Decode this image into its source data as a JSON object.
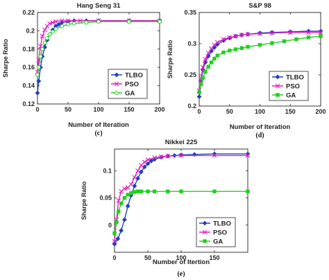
{
  "chart_data": [
    {
      "type": "line",
      "title": "Hang Seng 31",
      "panel_label": "(c)",
      "xlabel": "Number of Iteration",
      "ylabel": "Sharpe Ratio",
      "xlim": [
        0,
        200
      ],
      "ylim": [
        0.12,
        0.22
      ],
      "xticks": [
        0,
        50,
        100,
        150,
        200
      ],
      "yticks": [
        0.12,
        0.14,
        0.16,
        0.18,
        0.2,
        0.22
      ],
      "ytick_labels": [
        "0.12",
        "0.14",
        "0.16",
        "0.18",
        "0.2",
        "0.22"
      ],
      "grid": false,
      "legend": "bottom-right",
      "series": [
        {
          "name": "TLBO",
          "color": "#1f3fbf",
          "marker": "diamond",
          "x": [
            0,
            2,
            5,
            8,
            12,
            16,
            20,
            25,
            30,
            35,
            40,
            50,
            60,
            80,
            100,
            150,
            200
          ],
          "y": [
            0.132,
            0.145,
            0.16,
            0.172,
            0.182,
            0.19,
            0.196,
            0.201,
            0.205,
            0.207,
            0.209,
            0.21,
            0.211,
            0.211,
            0.211,
            0.211,
            0.211
          ]
        },
        {
          "name": "PSO",
          "color": "#e020c0",
          "marker": "x",
          "x": [
            0,
            2,
            5,
            8,
            12,
            16,
            20,
            25,
            30,
            40,
            50,
            70,
            100,
            150,
            200
          ],
          "y": [
            0.155,
            0.168,
            0.183,
            0.194,
            0.201,
            0.205,
            0.208,
            0.209,
            0.21,
            0.211,
            0.211,
            0.211,
            0.211,
            0.211,
            0.211
          ]
        },
        {
          "name": "GA",
          "color": "#20d020",
          "marker": "circle",
          "x": [
            0,
            2,
            5,
            8,
            12,
            16,
            20,
            25,
            30,
            40,
            50,
            60,
            80,
            100,
            150,
            200
          ],
          "y": [
            0.152,
            0.16,
            0.172,
            0.18,
            0.187,
            0.192,
            0.196,
            0.199,
            0.202,
            0.205,
            0.207,
            0.208,
            0.209,
            0.21,
            0.21,
            0.21
          ]
        }
      ]
    },
    {
      "type": "line",
      "title": "S&P 98",
      "panel_label": "(d)",
      "xlabel": "Number of Iteration",
      "ylabel": "Sharpe Ratio",
      "xlim": [
        0,
        200
      ],
      "ylim": [
        0.2,
        0.35
      ],
      "xticks": [
        0,
        50,
        100,
        150,
        200
      ],
      "yticks": [
        0.2,
        0.25,
        0.3,
        0.35
      ],
      "ytick_labels": [
        "0.2",
        "0.25",
        "0.3",
        "0.35"
      ],
      "grid": false,
      "legend": "bottom-right",
      "series": [
        {
          "name": "TLBO",
          "color": "#1f3fbf",
          "marker": "diamond",
          "x": [
            0,
            3,
            6,
            10,
            15,
            20,
            25,
            30,
            40,
            50,
            60,
            70,
            80,
            100,
            120,
            150,
            180,
            200
          ],
          "y": [
            0.215,
            0.24,
            0.258,
            0.27,
            0.28,
            0.288,
            0.294,
            0.299,
            0.305,
            0.309,
            0.312,
            0.314,
            0.315,
            0.317,
            0.318,
            0.319,
            0.32,
            0.32
          ]
        },
        {
          "name": "PSO",
          "color": "#e020c0",
          "marker": "x",
          "x": [
            0,
            3,
            6,
            10,
            15,
            20,
            25,
            30,
            40,
            50,
            60,
            70,
            80,
            100,
            120,
            150,
            180,
            200
          ],
          "y": [
            0.225,
            0.245,
            0.262,
            0.275,
            0.285,
            0.292,
            0.298,
            0.302,
            0.307,
            0.31,
            0.312,
            0.314,
            0.315,
            0.316,
            0.317,
            0.318,
            0.318,
            0.318
          ]
        },
        {
          "name": "GA",
          "color": "#20d020",
          "marker": "square",
          "x": [
            0,
            3,
            6,
            10,
            15,
            20,
            25,
            30,
            40,
            50,
            60,
            70,
            80,
            100,
            120,
            140,
            160,
            180,
            200
          ],
          "y": [
            0.222,
            0.235,
            0.245,
            0.255,
            0.263,
            0.27,
            0.276,
            0.281,
            0.286,
            0.289,
            0.291,
            0.293,
            0.295,
            0.298,
            0.301,
            0.304,
            0.307,
            0.31,
            0.312
          ]
        }
      ]
    },
    {
      "type": "line",
      "title": "Nikkei 225",
      "panel_label": "(e)",
      "xlabel": "Number of Itertion",
      "ylabel": "Sharpe Ratio",
      "xlim": [
        0,
        200
      ],
      "ylim": [
        -0.05,
        0.14
      ],
      "xticks": [
        0,
        50,
        100,
        150
      ],
      "yticks": [
        0,
        0.05,
        0.1
      ],
      "ytick_labels": [
        "0",
        "0.05",
        "0.1"
      ],
      "grid": false,
      "legend": "bottom-right",
      "series": [
        {
          "name": "TLBO",
          "color": "#1f3fbf",
          "marker": "diamond",
          "x": [
            0,
            5,
            10,
            15,
            20,
            25,
            30,
            35,
            40,
            45,
            50,
            55,
            60,
            70,
            80,
            90,
            100,
            120,
            150,
            200
          ],
          "y": [
            -0.035,
            -0.025,
            -0.01,
            0.01,
            0.035,
            0.055,
            0.072,
            0.086,
            0.098,
            0.107,
            0.113,
            0.118,
            0.121,
            0.125,
            0.127,
            0.128,
            0.129,
            0.13,
            0.131,
            0.131
          ]
        },
        {
          "name": "PSO",
          "color": "#e020c0",
          "marker": "x",
          "x": [
            0,
            3,
            6,
            10,
            15,
            20,
            25,
            30,
            35,
            40,
            45,
            50,
            60,
            70,
            80,
            100,
            150,
            200
          ],
          "y": [
            -0.03,
            0.01,
            0.045,
            0.062,
            0.067,
            0.069,
            0.075,
            0.088,
            0.1,
            0.11,
            0.116,
            0.12,
            0.124,
            0.126,
            0.127,
            0.128,
            0.128,
            0.128
          ]
        },
        {
          "name": "GA",
          "color": "#20d020",
          "marker": "square",
          "x": [
            0,
            3,
            6,
            10,
            15,
            20,
            25,
            30,
            35,
            40,
            50,
            60,
            80,
            100,
            150,
            200
          ],
          "y": [
            -0.015,
            0.005,
            0.025,
            0.04,
            0.05,
            0.056,
            0.059,
            0.061,
            0.062,
            0.062,
            0.062,
            0.062,
            0.062,
            0.062,
            0.062,
            0.062
          ]
        }
      ]
    }
  ]
}
